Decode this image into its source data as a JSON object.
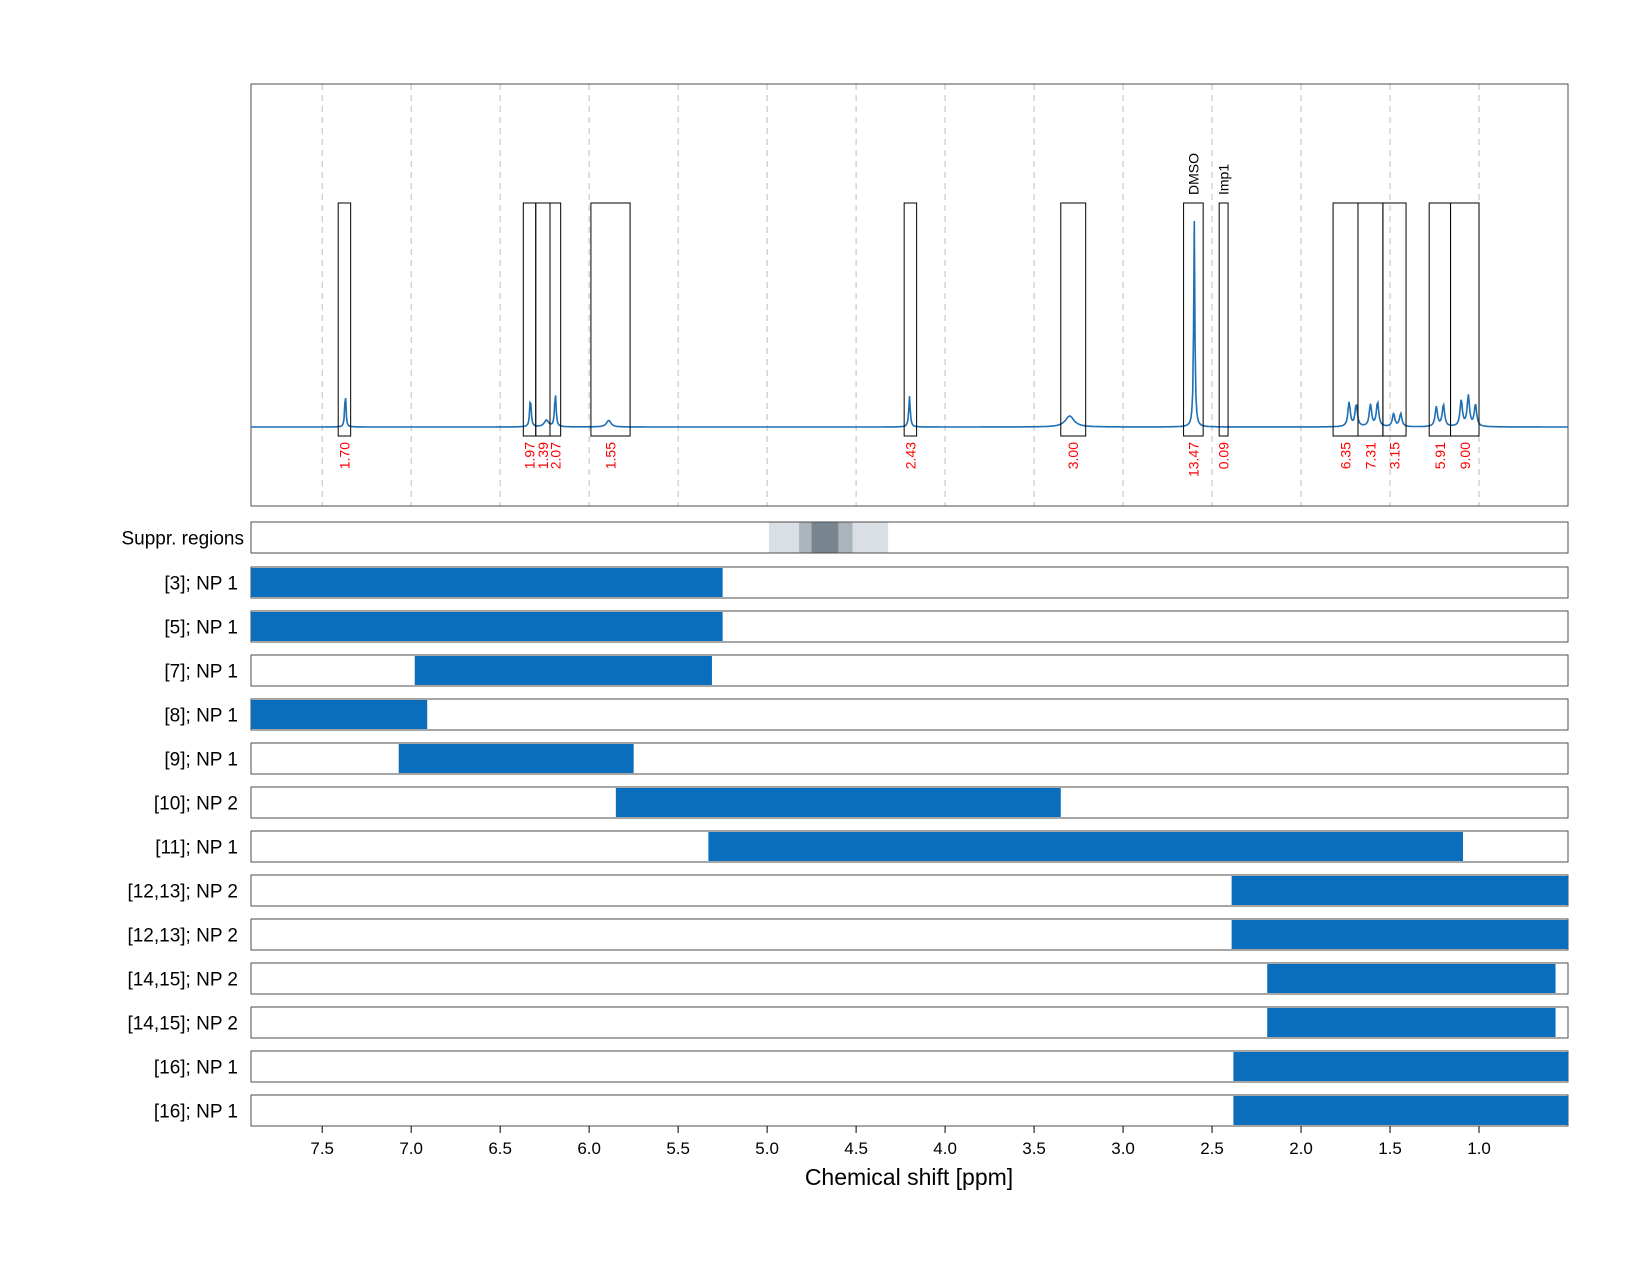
{
  "chart_data": {
    "type": "line",
    "xlabel": "Chemical shift [ppm]",
    "x_axis_reversed": true,
    "xlim": [
      7.9,
      0.5
    ],
    "x_ticks": [
      "7.5",
      "7.0",
      "6.5",
      "6.0",
      "5.5",
      "5.0",
      "4.5",
      "4.0",
      "3.5",
      "3.0",
      "2.5",
      "2.0",
      "1.5",
      "1.0"
    ],
    "grid": true,
    "spectrum": {
      "color": "#1f6fb5",
      "baseline": 0.0,
      "peaks": [
        {
          "ppm": 7.37,
          "height": 0.16,
          "width": 0.004
        },
        {
          "ppm": 6.33,
          "height": 0.13,
          "width": 0.005
        },
        {
          "ppm": 6.24,
          "height": 0.03,
          "width": 0.015
        },
        {
          "ppm": 6.19,
          "height": 0.15,
          "width": 0.005
        },
        {
          "ppm": 5.89,
          "height": 0.03,
          "width": 0.015
        },
        {
          "ppm": 4.2,
          "height": 0.14,
          "width": 0.005
        },
        {
          "ppm": 3.3,
          "height": 0.05,
          "width": 0.03
        },
        {
          "ppm": 2.6,
          "height": 0.94,
          "width": 0.004
        },
        {
          "ppm": 1.73,
          "height": 0.11,
          "width": 0.008
        },
        {
          "ppm": 1.69,
          "height": 0.1,
          "width": 0.008
        },
        {
          "ppm": 1.61,
          "height": 0.1,
          "width": 0.008
        },
        {
          "ppm": 1.57,
          "height": 0.11,
          "width": 0.008
        },
        {
          "ppm": 1.48,
          "height": 0.06,
          "width": 0.008
        },
        {
          "ppm": 1.44,
          "height": 0.06,
          "width": 0.008
        },
        {
          "ppm": 1.24,
          "height": 0.09,
          "width": 0.008
        },
        {
          "ppm": 1.2,
          "height": 0.1,
          "width": 0.008
        },
        {
          "ppm": 1.1,
          "height": 0.12,
          "width": 0.008
        },
        {
          "ppm": 1.06,
          "height": 0.14,
          "width": 0.008
        },
        {
          "ppm": 1.02,
          "height": 0.1,
          "width": 0.008
        }
      ]
    },
    "integral_regions": [
      {
        "from": 7.41,
        "to": 7.34,
        "value": "1.70",
        "label": ""
      },
      {
        "from": 6.37,
        "to": 6.3,
        "value": "1.97",
        "label": ""
      },
      {
        "from": 6.3,
        "to": 6.22,
        "value": "1.39",
        "label": ""
      },
      {
        "from": 6.22,
        "to": 6.16,
        "value": "2.07",
        "label": ""
      },
      {
        "from": 5.99,
        "to": 5.77,
        "value": "1.55",
        "label": ""
      },
      {
        "from": 4.23,
        "to": 4.16,
        "value": "2.43",
        "label": ""
      },
      {
        "from": 3.35,
        "to": 3.21,
        "value": "3.00",
        "label": ""
      },
      {
        "from": 2.66,
        "to": 2.55,
        "value": "13.47",
        "label": "DMSO"
      },
      {
        "from": 2.46,
        "to": 2.41,
        "value": "0.09",
        "label": "Imp1"
      },
      {
        "from": 1.82,
        "to": 1.68,
        "value": "6.35",
        "label": ""
      },
      {
        "from": 1.68,
        "to": 1.54,
        "value": "7.31",
        "label": ""
      },
      {
        "from": 1.54,
        "to": 1.41,
        "value": "3.15",
        "label": ""
      },
      {
        "from": 1.28,
        "to": 1.16,
        "value": "5.91",
        "label": ""
      },
      {
        "from": 1.16,
        "to": 1.0,
        "value": "9.00",
        "label": ""
      }
    ],
    "suppressed_regions": {
      "label": "Suppr. regions",
      "bands": [
        {
          "from": 4.99,
          "to": 4.32,
          "shade": "#d9dfe4"
        },
        {
          "from": 4.82,
          "to": 4.52,
          "shade": "#aab4bd"
        },
        {
          "from": 4.75,
          "to": 4.6,
          "shade": "#78858f"
        }
      ]
    },
    "assignment_rows": [
      {
        "label": "[3]; NP 1",
        "from": 7.9,
        "to": 5.25
      },
      {
        "label": "[5]; NP 1",
        "from": 7.9,
        "to": 5.25
      },
      {
        "label": "[7]; NP 1",
        "from": 6.98,
        "to": 5.31
      },
      {
        "label": "[8]; NP 1",
        "from": 7.9,
        "to": 6.91
      },
      {
        "label": "[9]; NP 1",
        "from": 7.07,
        "to": 5.75
      },
      {
        "label": "[10]; NP 2",
        "from": 5.85,
        "to": 3.35
      },
      {
        "label": "[11]; NP 1",
        "from": 5.33,
        "to": 1.09
      },
      {
        "label": "[12,13]; NP 2",
        "from": 2.39,
        "to": 0.5
      },
      {
        "label": "[12,13]; NP 2",
        "from": 2.39,
        "to": 0.5
      },
      {
        "label": "[14,15]; NP 2",
        "from": 2.19,
        "to": 0.57
      },
      {
        "label": "[14,15]; NP 2",
        "from": 2.19,
        "to": 0.57
      },
      {
        "label": "[16]; NP 1",
        "from": 2.38,
        "to": 0.5
      },
      {
        "label": "[16]; NP 1",
        "from": 2.38,
        "to": 0.5
      }
    ],
    "colors": {
      "bar": "#0a6ebd",
      "spectrum": "#1f6fb5",
      "integral_text": "#ff0000",
      "grid": "#bdbdbd",
      "frame": "#4d4d4d"
    }
  }
}
